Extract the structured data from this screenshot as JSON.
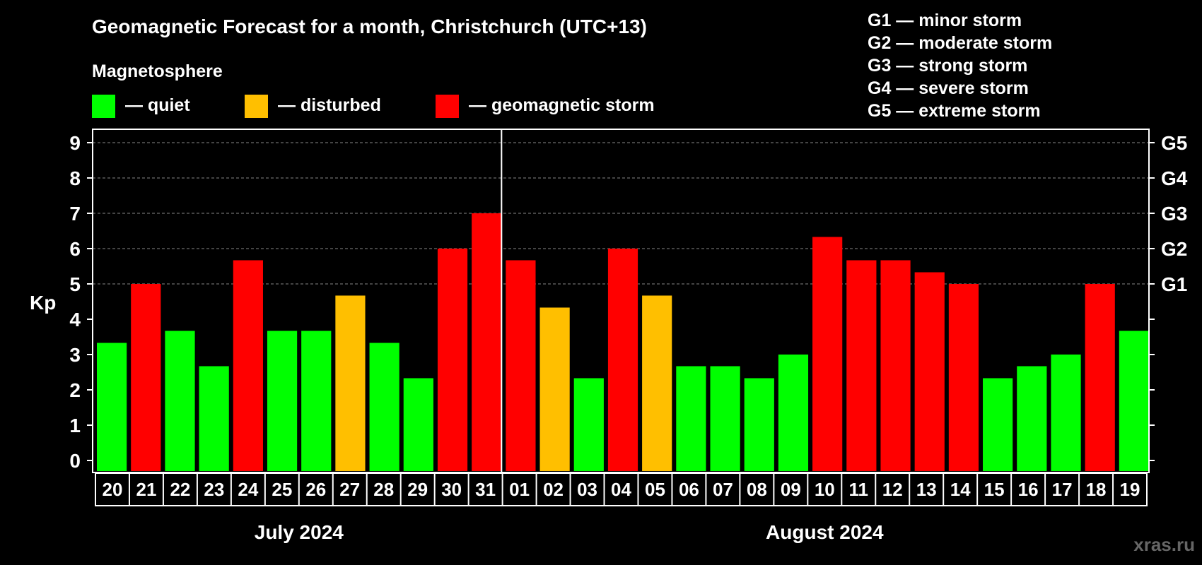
{
  "chart_data": {
    "type": "bar",
    "title": "Geomagnetic Forecast for a month, Christchurch (UTC+13)",
    "legend": {
      "heading": "Magnetosphere",
      "entries": [
        {
          "label": "— quiet",
          "color": "#00ff00"
        },
        {
          "label": "— disturbed",
          "color": "#ffbf00"
        },
        {
          "label": "— geomagnetic storm",
          "color": "#ff0000"
        }
      ]
    },
    "storm_scale": [
      "G1 — minor storm",
      "G2 — moderate storm",
      "G3 — strong storm",
      "G4 — severe storm",
      "G5 — extreme storm"
    ],
    "ylabel": "Kp",
    "ylim": [
      0,
      9
    ],
    "yticks": [
      "0",
      "1",
      "2",
      "3",
      "4",
      "5",
      "6",
      "7",
      "8",
      "9"
    ],
    "right_labels": [
      {
        "value": 5,
        "label": "G1"
      },
      {
        "value": 6,
        "label": "G2"
      },
      {
        "value": 7,
        "label": "G3"
      },
      {
        "value": 8,
        "label": "G4"
      },
      {
        "value": 9,
        "label": "G5"
      }
    ],
    "categories": [
      "20",
      "21",
      "22",
      "23",
      "24",
      "25",
      "26",
      "27",
      "28",
      "29",
      "30",
      "31",
      "01",
      "02",
      "03",
      "04",
      "05",
      "06",
      "07",
      "08",
      "09",
      "10",
      "11",
      "12",
      "13",
      "14",
      "15",
      "16",
      "17",
      "18",
      "19"
    ],
    "values": [
      3.33,
      5,
      3.67,
      2.67,
      5.67,
      3.67,
      3.67,
      4.67,
      3.33,
      2.33,
      6,
      7,
      5.67,
      4.33,
      2.33,
      6,
      4.67,
      2.67,
      2.67,
      2.33,
      3,
      6.33,
      5.67,
      5.67,
      5.33,
      5,
      2.33,
      2.67,
      3,
      5,
      3.67
    ],
    "months": [
      {
        "label": "July 2024",
        "days": 12
      },
      {
        "label": "August 2024",
        "days": 19
      }
    ],
    "colors": {
      "quiet": "#00ff00",
      "disturbed": "#ffbf00",
      "storm": "#ff0000"
    },
    "grid": true
  },
  "watermark": "xras.ru"
}
